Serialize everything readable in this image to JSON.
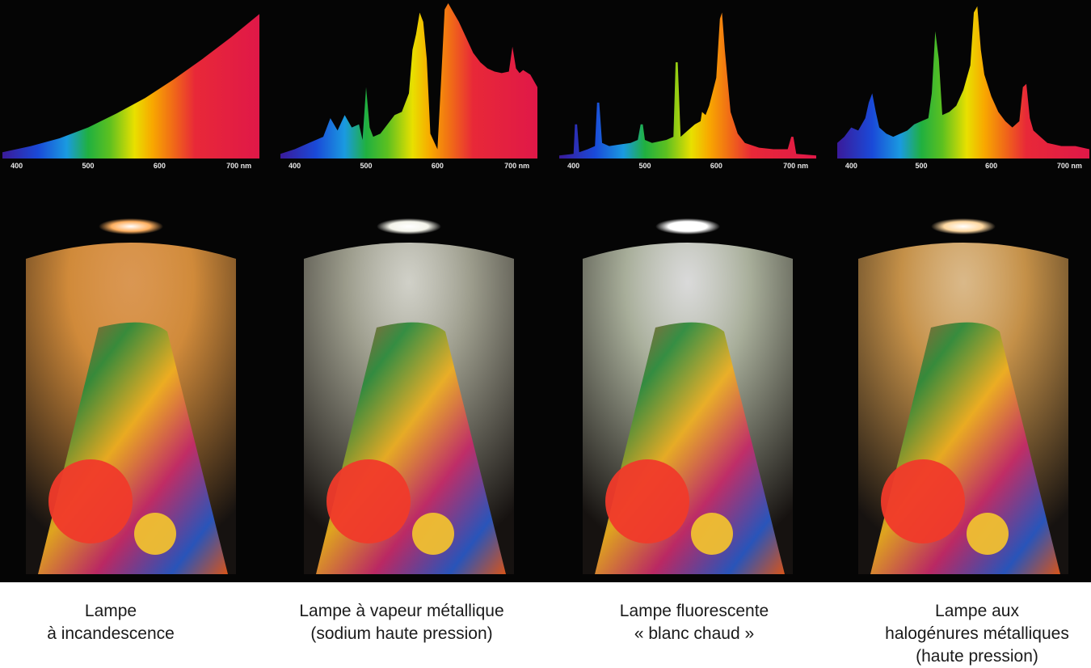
{
  "chart_data": [
    {
      "type": "area",
      "name": "incandescent",
      "x_unit": "nm",
      "xlim": [
        380,
        740
      ],
      "ylim": [
        0,
        100
      ],
      "ticks": [
        "400",
        "500",
        "600",
        "700 nm"
      ],
      "tick_values": [
        400,
        500,
        600,
        700
      ],
      "x": [
        380,
        420,
        460,
        500,
        540,
        580,
        620,
        660,
        700,
        740
      ],
      "y": [
        4,
        8,
        13,
        20,
        29,
        39,
        51,
        64,
        78,
        93
      ],
      "caption": [
        "Lampe",
        "à incandescence"
      ],
      "wall_color": "#d08a3a",
      "light_color": "#ffb060"
    },
    {
      "type": "area",
      "name": "sodium",
      "x_unit": "nm",
      "xlim": [
        380,
        740
      ],
      "ylim": [
        0,
        100
      ],
      "ticks": [
        "400",
        "500",
        "600",
        "700 nm"
      ],
      "tick_values": [
        400,
        500,
        600,
        700
      ],
      "x": [
        380,
        400,
        420,
        440,
        450,
        460,
        470,
        480,
        490,
        495,
        500,
        505,
        510,
        520,
        530,
        540,
        550,
        560,
        565,
        570,
        575,
        580,
        585,
        590,
        600,
        605,
        610,
        615,
        620,
        630,
        640,
        650,
        660,
        670,
        680,
        690,
        700,
        705,
        710,
        715,
        720,
        730,
        740
      ],
      "y": [
        3,
        6,
        10,
        14,
        26,
        18,
        28,
        20,
        22,
        12,
        46,
        20,
        14,
        16,
        22,
        28,
        30,
        42,
        70,
        80,
        94,
        88,
        64,
        16,
        6,
        50,
        96,
        100,
        96,
        88,
        78,
        68,
        62,
        58,
        56,
        55,
        56,
        72,
        58,
        55,
        57,
        54,
        46
      ],
      "caption": [
        "Lampe à vapeur métallique",
        "(sodium haute pression)"
      ],
      "wall_color": "#9c9c8c",
      "light_color": "#f4f4ea"
    },
    {
      "type": "area",
      "name": "fluorescent",
      "x_unit": "nm",
      "xlim": [
        380,
        740
      ],
      "ylim": [
        0,
        100
      ],
      "ticks": [
        "400",
        "500",
        "600",
        "700 nm"
      ],
      "tick_values": [
        400,
        500,
        600,
        700
      ],
      "x": [
        380,
        400,
        402,
        405,
        408,
        420,
        430,
        433,
        436,
        440,
        450,
        480,
        490,
        494,
        497,
        500,
        510,
        530,
        540,
        543,
        546,
        550,
        560,
        570,
        578,
        580,
        585,
        590,
        600,
        605,
        608,
        612,
        620,
        630,
        640,
        660,
        680,
        700,
        705,
        708,
        712,
        740
      ],
      "y": [
        2,
        3,
        22,
        22,
        4,
        6,
        8,
        36,
        36,
        10,
        8,
        10,
        12,
        22,
        22,
        12,
        10,
        12,
        14,
        62,
        62,
        14,
        18,
        22,
        24,
        30,
        28,
        34,
        52,
        90,
        94,
        70,
        30,
        16,
        10,
        7,
        6,
        6,
        14,
        14,
        3,
        2
      ],
      "caption": [
        "Lampe fluorescente",
        "« blanc chaud »"
      ],
      "wall_color": "#a8ae9a",
      "light_color": "#ffffff"
    },
    {
      "type": "area",
      "name": "metal-halide",
      "x_unit": "nm",
      "xlim": [
        380,
        740
      ],
      "ylim": [
        0,
        100
      ],
      "ticks": [
        "400",
        "500",
        "600",
        "700 nm"
      ],
      "tick_values": [
        400,
        500,
        600,
        700
      ],
      "x": [
        380,
        390,
        400,
        410,
        420,
        425,
        430,
        435,
        440,
        450,
        460,
        470,
        480,
        490,
        500,
        510,
        515,
        520,
        525,
        530,
        540,
        550,
        560,
        570,
        575,
        580,
        585,
        590,
        600,
        610,
        620,
        630,
        640,
        645,
        650,
        655,
        660,
        670,
        680,
        700,
        720,
        740
      ],
      "y": [
        10,
        14,
        20,
        18,
        26,
        36,
        42,
        30,
        20,
        16,
        14,
        16,
        18,
        22,
        24,
        26,
        42,
        82,
        64,
        28,
        30,
        34,
        44,
        60,
        94,
        98,
        70,
        54,
        40,
        30,
        24,
        20,
        24,
        46,
        48,
        26,
        18,
        14,
        10,
        8,
        8,
        6
      ],
      "caption": [
        "Lampe aux",
        "halogénures métalliques",
        "(haute pression)"
      ],
      "wall_color": "#c49048",
      "light_color": "#ffd8a0"
    }
  ]
}
